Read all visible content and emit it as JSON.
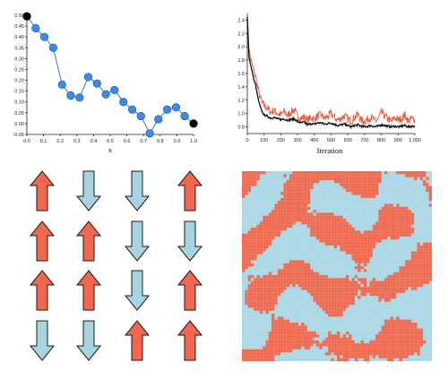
{
  "colors": {
    "path_line": "#4a6fd6",
    "path_point": "#3d8be8",
    "endpoint": "#000000",
    "energy_red": "#f05a3e",
    "energy_black": "#111111",
    "spin_up": "#f3674f",
    "spin_down": "#a8d4e2",
    "lattice_up": "#f06a4f",
    "lattice_down": "#acd8e6"
  },
  "chart_data": [
    {
      "type": "line",
      "xlabel": "x",
      "ylabel": "",
      "xlim": [
        0.0,
        1.0
      ],
      "ylim": [
        -0.05,
        0.5
      ],
      "xticks": [
        "0.0",
        "0.1",
        "0.2",
        "0.3",
        "0.4",
        "0.5",
        "0.6",
        "0.7",
        "0.8",
        "0.9",
        "1.0"
      ],
      "yticks": [
        "-0.05",
        "0.00",
        "0.05",
        "0.10",
        "0.15",
        "0.20",
        "0.25",
        "0.30",
        "0.35",
        "0.40",
        "0.45",
        "0.50"
      ],
      "grid": false,
      "x": [
        0.0,
        0.053,
        0.105,
        0.158,
        0.211,
        0.263,
        0.316,
        0.368,
        0.421,
        0.474,
        0.526,
        0.579,
        0.632,
        0.684,
        0.737,
        0.789,
        0.842,
        0.895,
        0.947,
        1.0
      ],
      "y": [
        0.495,
        0.44,
        0.4,
        0.35,
        0.18,
        0.13,
        0.12,
        0.215,
        0.185,
        0.135,
        0.155,
        0.1,
        0.065,
        0.035,
        -0.045,
        0.02,
        0.065,
        0.075,
        0.035,
        0.0
      ],
      "endpoints_marked": true
    },
    {
      "type": "line",
      "xlabel": "Iteration",
      "ylabel": "",
      "xlim": [
        0,
        1000
      ],
      "ylim": [
        0.7,
        2.5
      ],
      "xticks": [
        "0",
        "100",
        "200",
        "300",
        "400",
        "500",
        "600",
        "700",
        "800",
        "900",
        "1,000"
      ],
      "yticks": [
        "0.8",
        "1.0",
        "1.2",
        "1.4",
        "1.6",
        "1.8",
        "2.0",
        "2.2",
        "2.4"
      ],
      "grid": false,
      "series": [
        {
          "x": [
            0,
            10,
            20,
            30,
            40,
            50,
            60,
            70,
            80,
            90,
            100,
            120,
            140,
            160,
            180,
            200,
            220,
            240,
            260,
            280,
            300,
            320,
            340,
            360,
            380,
            400,
            420,
            440,
            460,
            480,
            500,
            520,
            540,
            560,
            580,
            600,
            620,
            640,
            660,
            680,
            700,
            720,
            740,
            760,
            780,
            800,
            820,
            840,
            860,
            880,
            900,
            920,
            940,
            960,
            980,
            1000
          ],
          "values": [
            2.48,
            1.95,
            1.82,
            1.72,
            1.62,
            1.55,
            1.42,
            1.3,
            1.22,
            1.15,
            1.12,
            1.08,
            1.02,
            1.05,
            1.0,
            0.98,
            1.03,
            0.97,
            1.02,
            1.06,
            0.96,
            0.93,
            0.95,
            0.9,
            0.94,
            0.92,
            0.96,
            0.98,
            0.93,
            0.95,
            1.0,
            0.94,
            0.9,
            0.93,
            0.97,
            0.92,
            0.89,
            0.94,
            0.99,
            0.9,
            0.88,
            0.92,
            0.95,
            0.89,
            0.91,
            1.02,
            0.96,
            0.92,
            0.88,
            0.94,
            0.9,
            0.93,
            0.98,
            0.89,
            0.92,
            0.92
          ]
        },
        {
          "x": [
            0,
            10,
            20,
            30,
            40,
            50,
            60,
            70,
            80,
            90,
            100,
            120,
            140,
            160,
            180,
            200,
            220,
            240,
            260,
            280,
            300,
            320,
            340,
            360,
            380,
            400,
            420,
            440,
            460,
            480,
            500,
            520,
            540,
            560,
            580,
            600,
            620,
            640,
            660,
            680,
            700,
            720,
            740,
            760,
            780,
            800,
            820,
            840,
            860,
            880,
            900,
            920,
            940,
            960,
            980,
            1000
          ],
          "values": [
            2.45,
            1.85,
            1.72,
            1.62,
            1.5,
            1.42,
            1.28,
            1.16,
            1.08,
            1.02,
            0.98,
            0.96,
            0.93,
            0.94,
            0.92,
            0.91,
            0.92,
            0.9,
            0.91,
            0.92,
            0.88,
            0.86,
            0.87,
            0.83,
            0.85,
            0.84,
            0.86,
            0.86,
            0.84,
            0.85,
            0.86,
            0.84,
            0.82,
            0.83,
            0.84,
            0.82,
            0.8,
            0.82,
            0.83,
            0.81,
            0.8,
            0.81,
            0.82,
            0.8,
            0.81,
            0.83,
            0.82,
            0.81,
            0.8,
            0.81,
            0.8,
            0.81,
            0.82,
            0.8,
            0.81,
            0.81
          ]
        }
      ]
    },
    {
      "type": "heatmap",
      "rows": 4,
      "cols": 4,
      "values": [
        [
          1,
          -1,
          -1,
          1
        ],
        [
          1,
          1,
          -1,
          -1
        ],
        [
          1,
          1,
          -1,
          1
        ],
        [
          -1,
          -1,
          1,
          1
        ]
      ]
    },
    {
      "type": "heatmap",
      "rows": 64,
      "cols": 64,
      "values_note": "binary spin lattice, two states, coarsened domains"
    }
  ]
}
